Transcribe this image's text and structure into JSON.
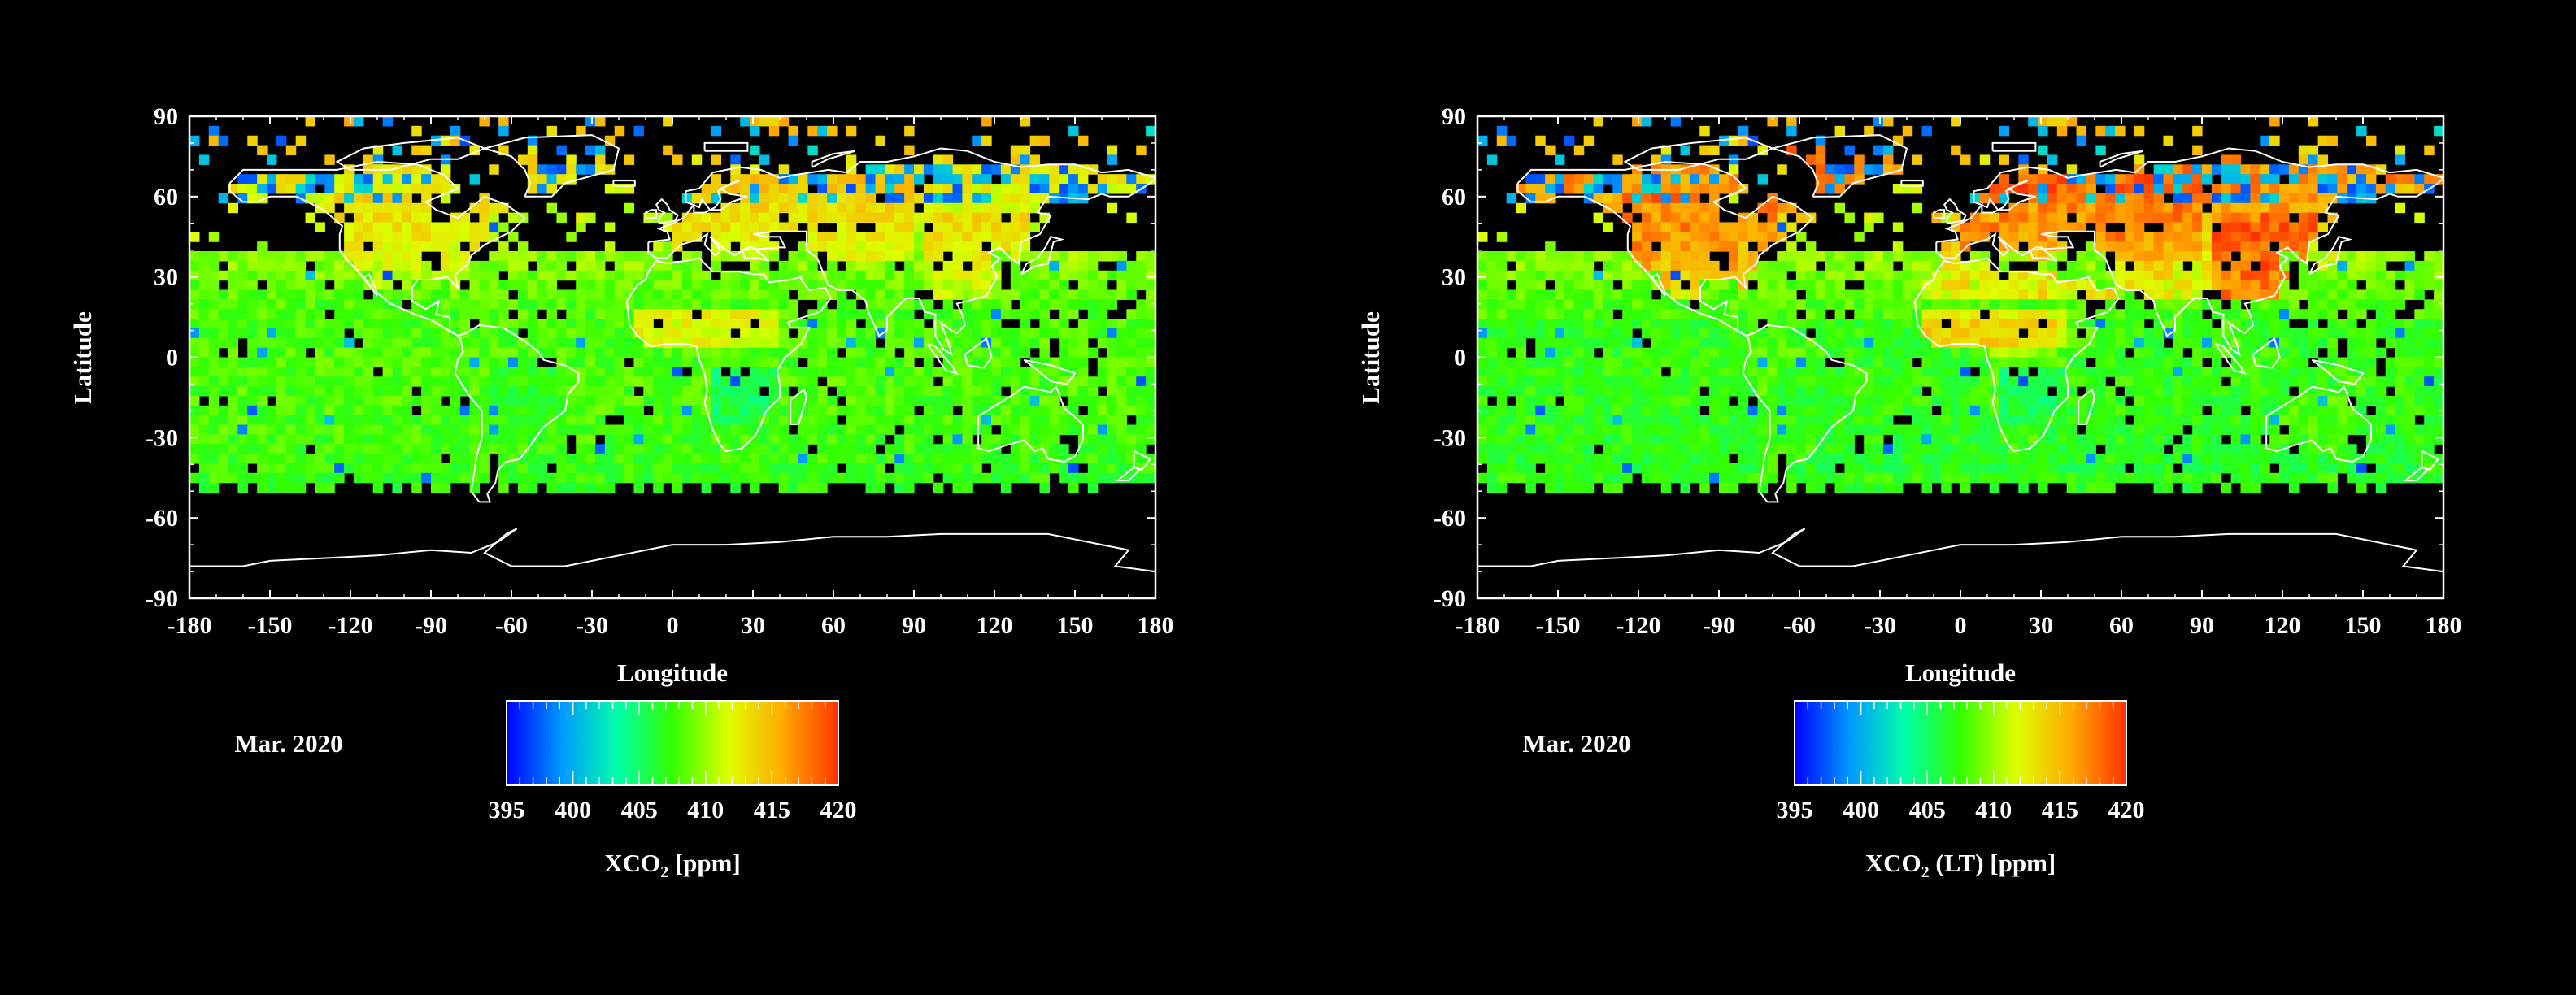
{
  "panels": [
    {
      "id": "left",
      "month_label": "Mar. 2020",
      "colorbar_title": {
        "main": "XCO",
        "sub": "2",
        "rest": " [ppm]"
      },
      "regional_enhancement": "baseline"
    },
    {
      "id": "right",
      "month_label": "Mar. 2020",
      "colorbar_title": {
        "main": "XCO",
        "sub": "2",
        "rest": " (LT) [ppm]"
      },
      "regional_enhancement": "strong"
    }
  ],
  "axes": {
    "xlabel": "Longitude",
    "ylabel": "Latitude",
    "xticks": [
      "-180",
      "-150",
      "-120",
      "-90",
      "-60",
      "-30",
      "0",
      "30",
      "60",
      "90",
      "120",
      "150",
      "180"
    ],
    "yticks": [
      "90",
      "60",
      "30",
      "0",
      "-30",
      "-60",
      "-90"
    ],
    "xlim": [
      -180,
      180
    ],
    "ylim": [
      -90,
      90
    ]
  },
  "colorbar": {
    "ticks": [
      "395",
      "400",
      "405",
      "410",
      "415",
      "420"
    ],
    "range": [
      395,
      420
    ],
    "colors": [
      "#0000ff",
      "#0099ff",
      "#00ffaa",
      "#33ff00",
      "#ddff00",
      "#ffaa00",
      "#ff3300"
    ]
  },
  "chart_data": [
    {
      "type": "heatmap",
      "title": "",
      "xlabel": "Longitude",
      "ylabel": "Latitude",
      "xlim": [
        -180,
        180
      ],
      "ylim": [
        -90,
        90
      ],
      "colorbar_label": "XCO2 [ppm]",
      "colorbar_range": [
        395,
        420
      ],
      "period": "Mar. 2020",
      "representative_values_ppm": {
        "southern_ocean_mid_latitudes": 407,
        "tropics": 409,
        "northern_mid_latitudes": 412,
        "sahel_central_africa": 414,
        "east_asia": 413,
        "high_arctic_sparse": 400
      }
    },
    {
      "type": "heatmap",
      "title": "",
      "xlabel": "Longitude",
      "ylabel": "Latitude",
      "xlim": [
        -180,
        180
      ],
      "ylim": [
        -90,
        90
      ],
      "colorbar_label": "XCO2 (LT) [ppm]",
      "colorbar_range": [
        395,
        420
      ],
      "period": "Mar. 2020",
      "representative_values_ppm": {
        "southern_ocean_mid_latitudes": 406,
        "tropics": 409,
        "northern_mid_latitudes": 414,
        "sahel_central_africa": 417,
        "east_asia": 419,
        "high_arctic_sparse": 400
      }
    }
  ]
}
